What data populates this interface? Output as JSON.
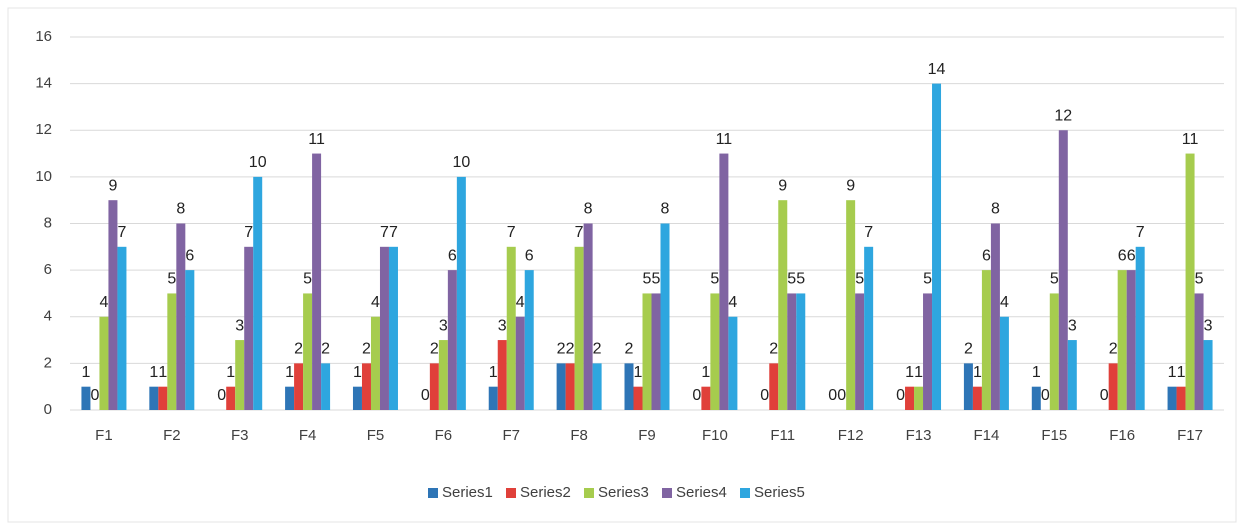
{
  "chart_data": {
    "type": "bar",
    "categories": [
      "F1",
      "F2",
      "F3",
      "F4",
      "F5",
      "F6",
      "F7",
      "F8",
      "F9",
      "F10",
      "F11",
      "F12",
      "F13",
      "F14",
      "F15",
      "F16",
      "F17"
    ],
    "series": [
      {
        "name": "Series1",
        "color": "#2e75b6",
        "values": [
          1,
          1,
          0,
          1,
          1,
          0,
          1,
          2,
          2,
          0,
          0,
          0,
          0,
          2,
          1,
          0,
          1
        ]
      },
      {
        "name": "Series2",
        "color": "#e0403a",
        "values": [
          0,
          1,
          1,
          2,
          2,
          2,
          3,
          2,
          1,
          1,
          2,
          0,
          1,
          1,
          0,
          2,
          1
        ]
      },
      {
        "name": "Series3",
        "color": "#a6cc4e",
        "values": [
          4,
          5,
          3,
          5,
          4,
          3,
          7,
          7,
          5,
          5,
          9,
          9,
          1,
          6,
          5,
          6,
          11
        ]
      },
      {
        "name": "Series4",
        "color": "#8064a2",
        "values": [
          9,
          8,
          7,
          11,
          7,
          6,
          4,
          8,
          5,
          11,
          5,
          5,
          5,
          8,
          12,
          6,
          5
        ]
      },
      {
        "name": "Series5",
        "color": "#2ea6df",
        "values": [
          7,
          6,
          10,
          2,
          7,
          10,
          6,
          2,
          8,
          4,
          5,
          7,
          14,
          4,
          3,
          7,
          3
        ]
      }
    ],
    "ylim": [
      0,
      16
    ],
    "yticks": [
      0,
      2,
      4,
      6,
      8,
      10,
      12,
      14,
      16
    ],
    "grid": true,
    "legend": "bottom"
  }
}
